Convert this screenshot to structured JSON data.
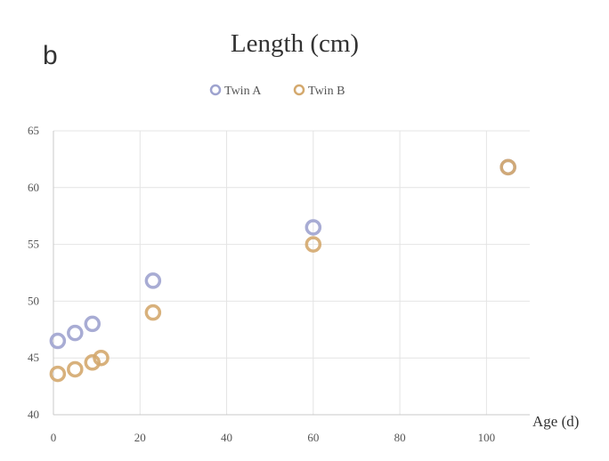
{
  "panel_label": "b",
  "chart_data": {
    "type": "scatter",
    "title": "Length (cm)",
    "xlabel": "Age (d)",
    "ylabel": "",
    "xlim": [
      0,
      110
    ],
    "ylim": [
      40,
      65
    ],
    "x_ticks": [
      0,
      20,
      40,
      60,
      80,
      100
    ],
    "y_ticks": [
      40,
      45,
      50,
      55,
      60,
      65
    ],
    "grid": true,
    "legend_position": "top-center",
    "series": [
      {
        "name": "Twin A",
        "color": "#9ea3cf",
        "points": [
          [
            1,
            46.5
          ],
          [
            5,
            47.2
          ],
          [
            9,
            48
          ],
          [
            23,
            51.8
          ],
          [
            60,
            56.5
          ],
          [
            105,
            61.8
          ]
        ]
      },
      {
        "name": "Twin B",
        "color": "#d4a96e",
        "points": [
          [
            1,
            43.6
          ],
          [
            5,
            44
          ],
          [
            9,
            44.6
          ],
          [
            11,
            45
          ],
          [
            23,
            49
          ],
          [
            60,
            55
          ],
          [
            105,
            61.8
          ]
        ]
      }
    ]
  }
}
